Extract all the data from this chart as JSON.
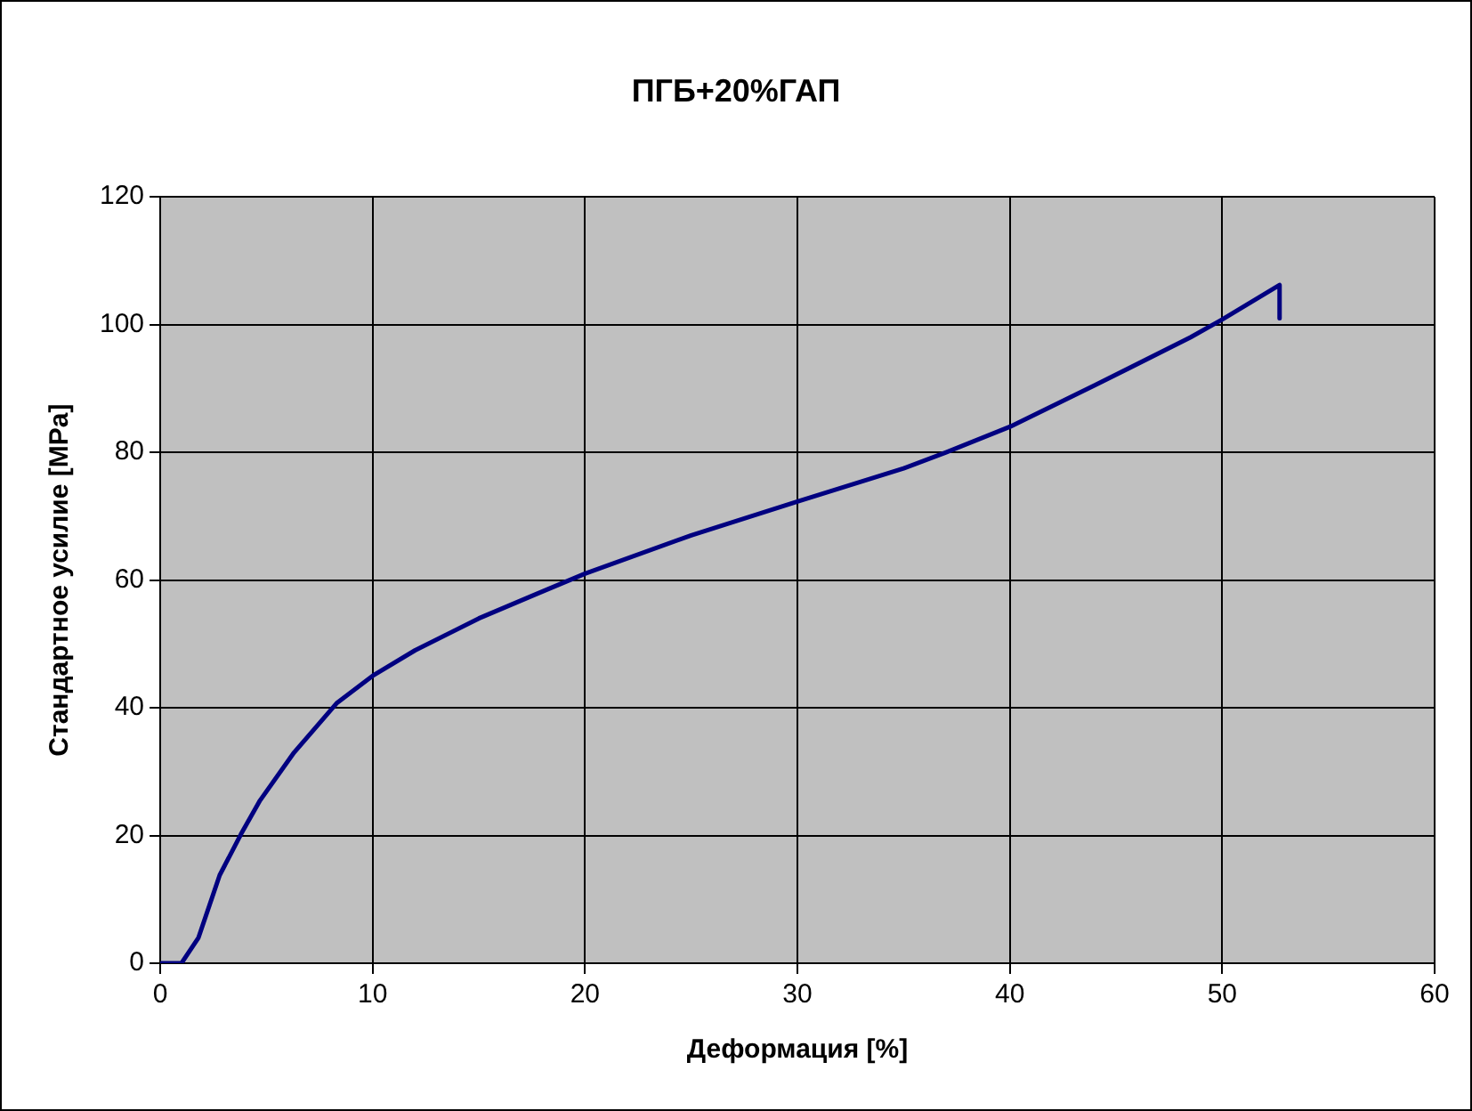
{
  "chart_data": {
    "type": "line",
    "title": "ПГБ+20%ГАП",
    "xlabel": "Деформация [%]",
    "ylabel": "Стандартное усилие [MPa]",
    "series": [
      {
        "color": "#000080",
        "x": [
          0,
          1,
          1.8,
          2.8,
          3.8,
          4.7,
          6.3,
          8.3,
          10,
          12,
          15,
          17.7,
          20,
          25,
          30,
          35,
          37,
          40,
          44,
          48.5,
          50,
          52.7,
          52.7
        ],
        "values": [
          0,
          0,
          4,
          13.8,
          20.2,
          25.5,
          33,
          40.7,
          45,
          49,
          54,
          57.8,
          61,
          67,
          72.3,
          77.5,
          80,
          84,
          90.5,
          98,
          100.8,
          106.2,
          101
        ]
      }
    ],
    "xlim": [
      0,
      60
    ],
    "xticks": [
      0,
      10,
      20,
      30,
      40,
      50,
      60
    ],
    "ylim": [
      0,
      120
    ],
    "yticks": [
      0,
      20,
      40,
      60,
      80,
      100,
      120
    ],
    "grid": true,
    "legend": false,
    "marker": "none",
    "line_style": "solid"
  }
}
